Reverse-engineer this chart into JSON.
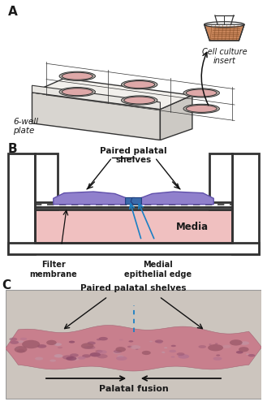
{
  "bg_color": "#ffffff",
  "panel_A_label": "A",
  "panel_B_label": "B",
  "panel_C_label": "C",
  "well_fill": "#dea8a8",
  "well_stroke": "#333333",
  "plate_face": "#f2f0ec",
  "plate_top": "#e8e6e2",
  "plate_side": "#d8d5d0",
  "media_fill": "#f0c0c0",
  "shelf_fill": "#9080cc",
  "shelf_edge": "#6050aa",
  "shelf_tip": "#3a6aaa",
  "shelf_tip_edge": "#204080",
  "insert_fill": "#c8855a",
  "insert_hatch": "#7a4520",
  "text_color": "#1a1a1a",
  "arrow_color": "#111111",
  "blue_arrow_color": "#1a7fc4",
  "wall_color": "#333333",
  "label_6well": "6-well\nplate",
  "label_insert": "Cell culture\ninsert",
  "label_paired": "Paired palatal\nshelves",
  "label_filter": "Filter\nmembrane",
  "label_medial": "Medial\nepithelial edge",
  "label_media": "Media",
  "label_paired_C": "Paired palatal shelves",
  "label_fusion": "Palatal fusion",
  "histo_bg": "#c8bdb8",
  "histo_tissue_main": "#c87888",
  "histo_tissue_dark": "#9a5868"
}
